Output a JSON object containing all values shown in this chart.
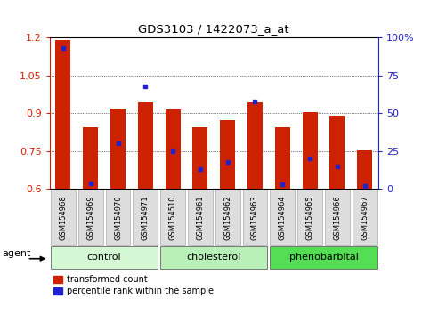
{
  "title": "GDS3103 / 1422073_a_at",
  "samples": [
    "GSM154968",
    "GSM154969",
    "GSM154970",
    "GSM154971",
    "GSM154510",
    "GSM154961",
    "GSM154962",
    "GSM154963",
    "GSM154964",
    "GSM154965",
    "GSM154966",
    "GSM154967"
  ],
  "transformed_count": [
    1.19,
    0.845,
    0.92,
    0.945,
    0.915,
    0.845,
    0.875,
    0.945,
    0.845,
    0.905,
    0.89,
    0.755
  ],
  "percentile_rank": [
    93,
    4,
    30,
    68,
    25,
    13,
    18,
    58,
    3,
    20,
    15,
    2
  ],
  "groups": [
    {
      "label": "control",
      "start": 0,
      "end": 3,
      "color": "#d4f7d4"
    },
    {
      "label": "cholesterol",
      "start": 4,
      "end": 7,
      "color": "#b8f0b8"
    },
    {
      "label": "phenobarbital",
      "start": 8,
      "end": 11,
      "color": "#44cc44"
    }
  ],
  "ylim_left": [
    0.6,
    1.2
  ],
  "ylim_right": [
    0,
    100
  ],
  "yticks_left": [
    0.6,
    0.75,
    0.9,
    1.05,
    1.2
  ],
  "yticks_right": [
    0,
    25,
    50,
    75,
    100
  ],
  "ytick_labels_right": [
    "0",
    "25",
    "50",
    "75",
    "100%"
  ],
  "bar_color": "#cc2200",
  "dot_color": "#2222cc",
  "tick_label_color_left": "#cc2200",
  "tick_label_color_right": "#2222cc",
  "bar_width": 0.55
}
